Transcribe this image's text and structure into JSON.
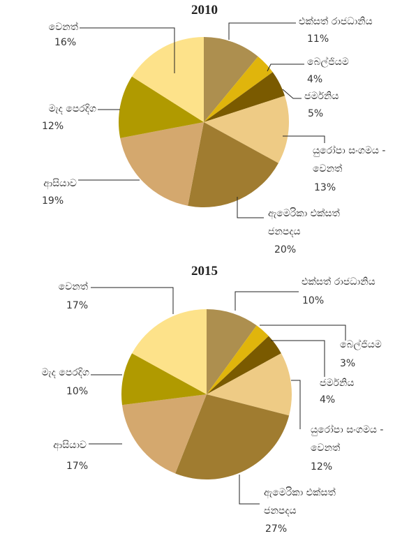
{
  "chart_data": [
    {
      "type": "pie",
      "title": "2010",
      "categories": [
        "එක්සත් රාජධානිය",
        "බෙල්ජියම",
        "ජර්මනිය",
        "යුරෝපා සංගමය - වෙනත්",
        "ඇමෙරිකා එක්සත් ජනපදය",
        "ආසියාව",
        "මැද පෙරදිග",
        "වෙනත්"
      ],
      "values": [
        11,
        4,
        5,
        13,
        20,
        19,
        12,
        16
      ],
      "value_labels": [
        "11%",
        "4%",
        "5%",
        "13%",
        "20%",
        "19%",
        "12%",
        "16%"
      ],
      "colors": [
        "#ad8f4f",
        "#e0b50c",
        "#7a5a00",
        "#eecb85",
        "#a07c30",
        "#d4a86e",
        "#b09a00",
        "#fde28a"
      ]
    },
    {
      "type": "pie",
      "title": "2015",
      "categories": [
        "එක්සත් රාජධානිය",
        "බෙල්ජියම",
        "ජර්මනිය",
        "යුරෝපා සංගමය - වෙනත්",
        "ඇමෙරිකා එක්සත් ජනපදය",
        "ආසියාව",
        "මැද පෙරදිග",
        "වෙනත්"
      ],
      "values": [
        10,
        3,
        4,
        12,
        27,
        17,
        10,
        17
      ],
      "value_labels": [
        "10%",
        "3%",
        "4%",
        "12%",
        "27%",
        "17%",
        "10%",
        "17%"
      ],
      "colors": [
        "#ad8f4f",
        "#e0b50c",
        "#7a5a00",
        "#eecb85",
        "#a07c30",
        "#d4a86e",
        "#b09a00",
        "#fde28a"
      ]
    }
  ]
}
